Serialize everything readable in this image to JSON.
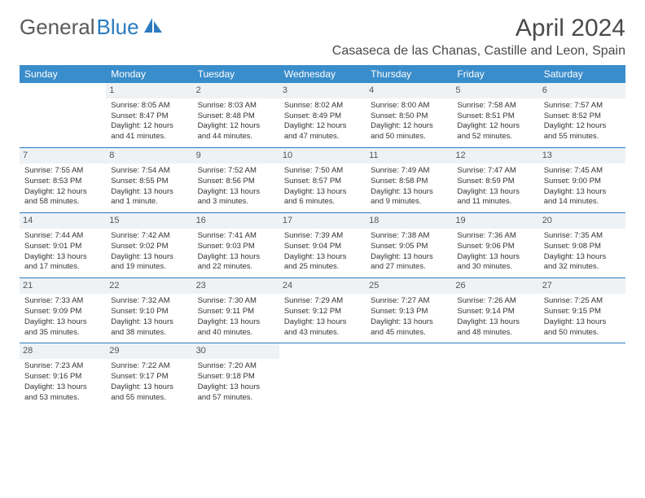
{
  "brand": {
    "part1": "General",
    "part2": "Blue"
  },
  "title": "April 2024",
  "location": "Casaseca de las Chanas, Castille and Leon, Spain",
  "colors": {
    "header_bg": "#3a8dcb",
    "header_text": "#ffffff",
    "border": "#2b7bbf",
    "daynum_bg": "#eef2f5",
    "text": "#333333",
    "logo_gray": "#5a5a5a",
    "logo_blue": "#2b7bbf"
  },
  "weekdays": [
    "Sunday",
    "Monday",
    "Tuesday",
    "Wednesday",
    "Thursday",
    "Friday",
    "Saturday"
  ],
  "weeks": [
    [
      {
        "day": "",
        "sunrise": "",
        "sunset": "",
        "daylight": ""
      },
      {
        "day": "1",
        "sunrise": "Sunrise: 8:05 AM",
        "sunset": "Sunset: 8:47 PM",
        "daylight": "Daylight: 12 hours and 41 minutes."
      },
      {
        "day": "2",
        "sunrise": "Sunrise: 8:03 AM",
        "sunset": "Sunset: 8:48 PM",
        "daylight": "Daylight: 12 hours and 44 minutes."
      },
      {
        "day": "3",
        "sunrise": "Sunrise: 8:02 AM",
        "sunset": "Sunset: 8:49 PM",
        "daylight": "Daylight: 12 hours and 47 minutes."
      },
      {
        "day": "4",
        "sunrise": "Sunrise: 8:00 AM",
        "sunset": "Sunset: 8:50 PM",
        "daylight": "Daylight: 12 hours and 50 minutes."
      },
      {
        "day": "5",
        "sunrise": "Sunrise: 7:58 AM",
        "sunset": "Sunset: 8:51 PM",
        "daylight": "Daylight: 12 hours and 52 minutes."
      },
      {
        "day": "6",
        "sunrise": "Sunrise: 7:57 AM",
        "sunset": "Sunset: 8:52 PM",
        "daylight": "Daylight: 12 hours and 55 minutes."
      }
    ],
    [
      {
        "day": "7",
        "sunrise": "Sunrise: 7:55 AM",
        "sunset": "Sunset: 8:53 PM",
        "daylight": "Daylight: 12 hours and 58 minutes."
      },
      {
        "day": "8",
        "sunrise": "Sunrise: 7:54 AM",
        "sunset": "Sunset: 8:55 PM",
        "daylight": "Daylight: 13 hours and 1 minute."
      },
      {
        "day": "9",
        "sunrise": "Sunrise: 7:52 AM",
        "sunset": "Sunset: 8:56 PM",
        "daylight": "Daylight: 13 hours and 3 minutes."
      },
      {
        "day": "10",
        "sunrise": "Sunrise: 7:50 AM",
        "sunset": "Sunset: 8:57 PM",
        "daylight": "Daylight: 13 hours and 6 minutes."
      },
      {
        "day": "11",
        "sunrise": "Sunrise: 7:49 AM",
        "sunset": "Sunset: 8:58 PM",
        "daylight": "Daylight: 13 hours and 9 minutes."
      },
      {
        "day": "12",
        "sunrise": "Sunrise: 7:47 AM",
        "sunset": "Sunset: 8:59 PM",
        "daylight": "Daylight: 13 hours and 11 minutes."
      },
      {
        "day": "13",
        "sunrise": "Sunrise: 7:45 AM",
        "sunset": "Sunset: 9:00 PM",
        "daylight": "Daylight: 13 hours and 14 minutes."
      }
    ],
    [
      {
        "day": "14",
        "sunrise": "Sunrise: 7:44 AM",
        "sunset": "Sunset: 9:01 PM",
        "daylight": "Daylight: 13 hours and 17 minutes."
      },
      {
        "day": "15",
        "sunrise": "Sunrise: 7:42 AM",
        "sunset": "Sunset: 9:02 PM",
        "daylight": "Daylight: 13 hours and 19 minutes."
      },
      {
        "day": "16",
        "sunrise": "Sunrise: 7:41 AM",
        "sunset": "Sunset: 9:03 PM",
        "daylight": "Daylight: 13 hours and 22 minutes."
      },
      {
        "day": "17",
        "sunrise": "Sunrise: 7:39 AM",
        "sunset": "Sunset: 9:04 PM",
        "daylight": "Daylight: 13 hours and 25 minutes."
      },
      {
        "day": "18",
        "sunrise": "Sunrise: 7:38 AM",
        "sunset": "Sunset: 9:05 PM",
        "daylight": "Daylight: 13 hours and 27 minutes."
      },
      {
        "day": "19",
        "sunrise": "Sunrise: 7:36 AM",
        "sunset": "Sunset: 9:06 PM",
        "daylight": "Daylight: 13 hours and 30 minutes."
      },
      {
        "day": "20",
        "sunrise": "Sunrise: 7:35 AM",
        "sunset": "Sunset: 9:08 PM",
        "daylight": "Daylight: 13 hours and 32 minutes."
      }
    ],
    [
      {
        "day": "21",
        "sunrise": "Sunrise: 7:33 AM",
        "sunset": "Sunset: 9:09 PM",
        "daylight": "Daylight: 13 hours and 35 minutes."
      },
      {
        "day": "22",
        "sunrise": "Sunrise: 7:32 AM",
        "sunset": "Sunset: 9:10 PM",
        "daylight": "Daylight: 13 hours and 38 minutes."
      },
      {
        "day": "23",
        "sunrise": "Sunrise: 7:30 AM",
        "sunset": "Sunset: 9:11 PM",
        "daylight": "Daylight: 13 hours and 40 minutes."
      },
      {
        "day": "24",
        "sunrise": "Sunrise: 7:29 AM",
        "sunset": "Sunset: 9:12 PM",
        "daylight": "Daylight: 13 hours and 43 minutes."
      },
      {
        "day": "25",
        "sunrise": "Sunrise: 7:27 AM",
        "sunset": "Sunset: 9:13 PM",
        "daylight": "Daylight: 13 hours and 45 minutes."
      },
      {
        "day": "26",
        "sunrise": "Sunrise: 7:26 AM",
        "sunset": "Sunset: 9:14 PM",
        "daylight": "Daylight: 13 hours and 48 minutes."
      },
      {
        "day": "27",
        "sunrise": "Sunrise: 7:25 AM",
        "sunset": "Sunset: 9:15 PM",
        "daylight": "Daylight: 13 hours and 50 minutes."
      }
    ],
    [
      {
        "day": "28",
        "sunrise": "Sunrise: 7:23 AM",
        "sunset": "Sunset: 9:16 PM",
        "daylight": "Daylight: 13 hours and 53 minutes."
      },
      {
        "day": "29",
        "sunrise": "Sunrise: 7:22 AM",
        "sunset": "Sunset: 9:17 PM",
        "daylight": "Daylight: 13 hours and 55 minutes."
      },
      {
        "day": "30",
        "sunrise": "Sunrise: 7:20 AM",
        "sunset": "Sunset: 9:18 PM",
        "daylight": "Daylight: 13 hours and 57 minutes."
      },
      {
        "day": "",
        "sunrise": "",
        "sunset": "",
        "daylight": ""
      },
      {
        "day": "",
        "sunrise": "",
        "sunset": "",
        "daylight": ""
      },
      {
        "day": "",
        "sunrise": "",
        "sunset": "",
        "daylight": ""
      },
      {
        "day": "",
        "sunrise": "",
        "sunset": "",
        "daylight": ""
      }
    ]
  ]
}
